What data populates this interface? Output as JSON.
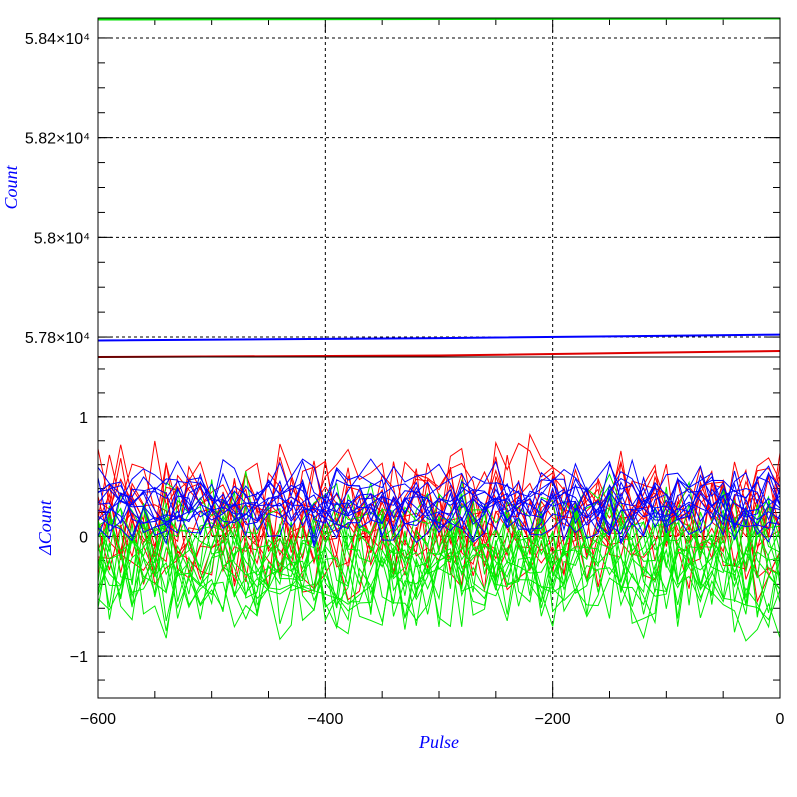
{
  "chart_data": [
    {
      "type": "line",
      "panel": "top",
      "xlabel": "",
      "ylabel": "Count",
      "ylabel_color": "#0000ff",
      "xlim": [
        -600,
        0
      ],
      "ylim": [
        57760,
        58440
      ],
      "grid": true,
      "yticks": [
        {
          "value": 57800,
          "label": "5.78×10⁴"
        },
        {
          "value": 58000,
          "label": "5.8×10⁴"
        },
        {
          "value": 58200,
          "label": "5.82×10⁴"
        },
        {
          "value": 58400,
          "label": "5.84×10⁴"
        }
      ],
      "series": [
        {
          "color": "#00dd00",
          "x": [
            -600,
            0
          ],
          "y": [
            58437,
            58439
          ]
        },
        {
          "color": "#0000ff",
          "x": [
            -600,
            -300,
            0
          ],
          "y": [
            57793,
            57798,
            57805
          ]
        },
        {
          "color": "#dd0000",
          "x": [
            -600,
            -300,
            0
          ],
          "y": [
            57760,
            57763,
            57772
          ]
        }
      ]
    },
    {
      "type": "line",
      "panel": "bottom",
      "xlabel": "Pulse",
      "xlabel_color": "#0000ff",
      "ylabel": "ΔCount",
      "ylabel_color": "#0000ff",
      "xlim": [
        -600,
        0
      ],
      "ylim": [
        -1.35,
        1.5
      ],
      "grid": true,
      "xticks": [
        {
          "value": -600,
          "label": "−600"
        },
        {
          "value": -400,
          "label": "−400"
        },
        {
          "value": -200,
          "label": "−200"
        },
        {
          "value": 0,
          "label": "0"
        }
      ],
      "yticks": [
        {
          "value": -1,
          "label": "−1"
        },
        {
          "value": 0,
          "label": "0"
        },
        {
          "value": 1,
          "label": "1"
        }
      ],
      "series_groups": [
        {
          "color": "#ff0000",
          "count": 12,
          "mean": 0.18,
          "spread": 0.38,
          "x_step": 10
        },
        {
          "color": "#00ee00",
          "count": 16,
          "mean": -0.2,
          "spread": 0.4,
          "x_step": 10
        },
        {
          "color": "#0000ff",
          "count": 12,
          "mean": 0.3,
          "spread": 0.2,
          "x_step": 10
        }
      ]
    }
  ]
}
